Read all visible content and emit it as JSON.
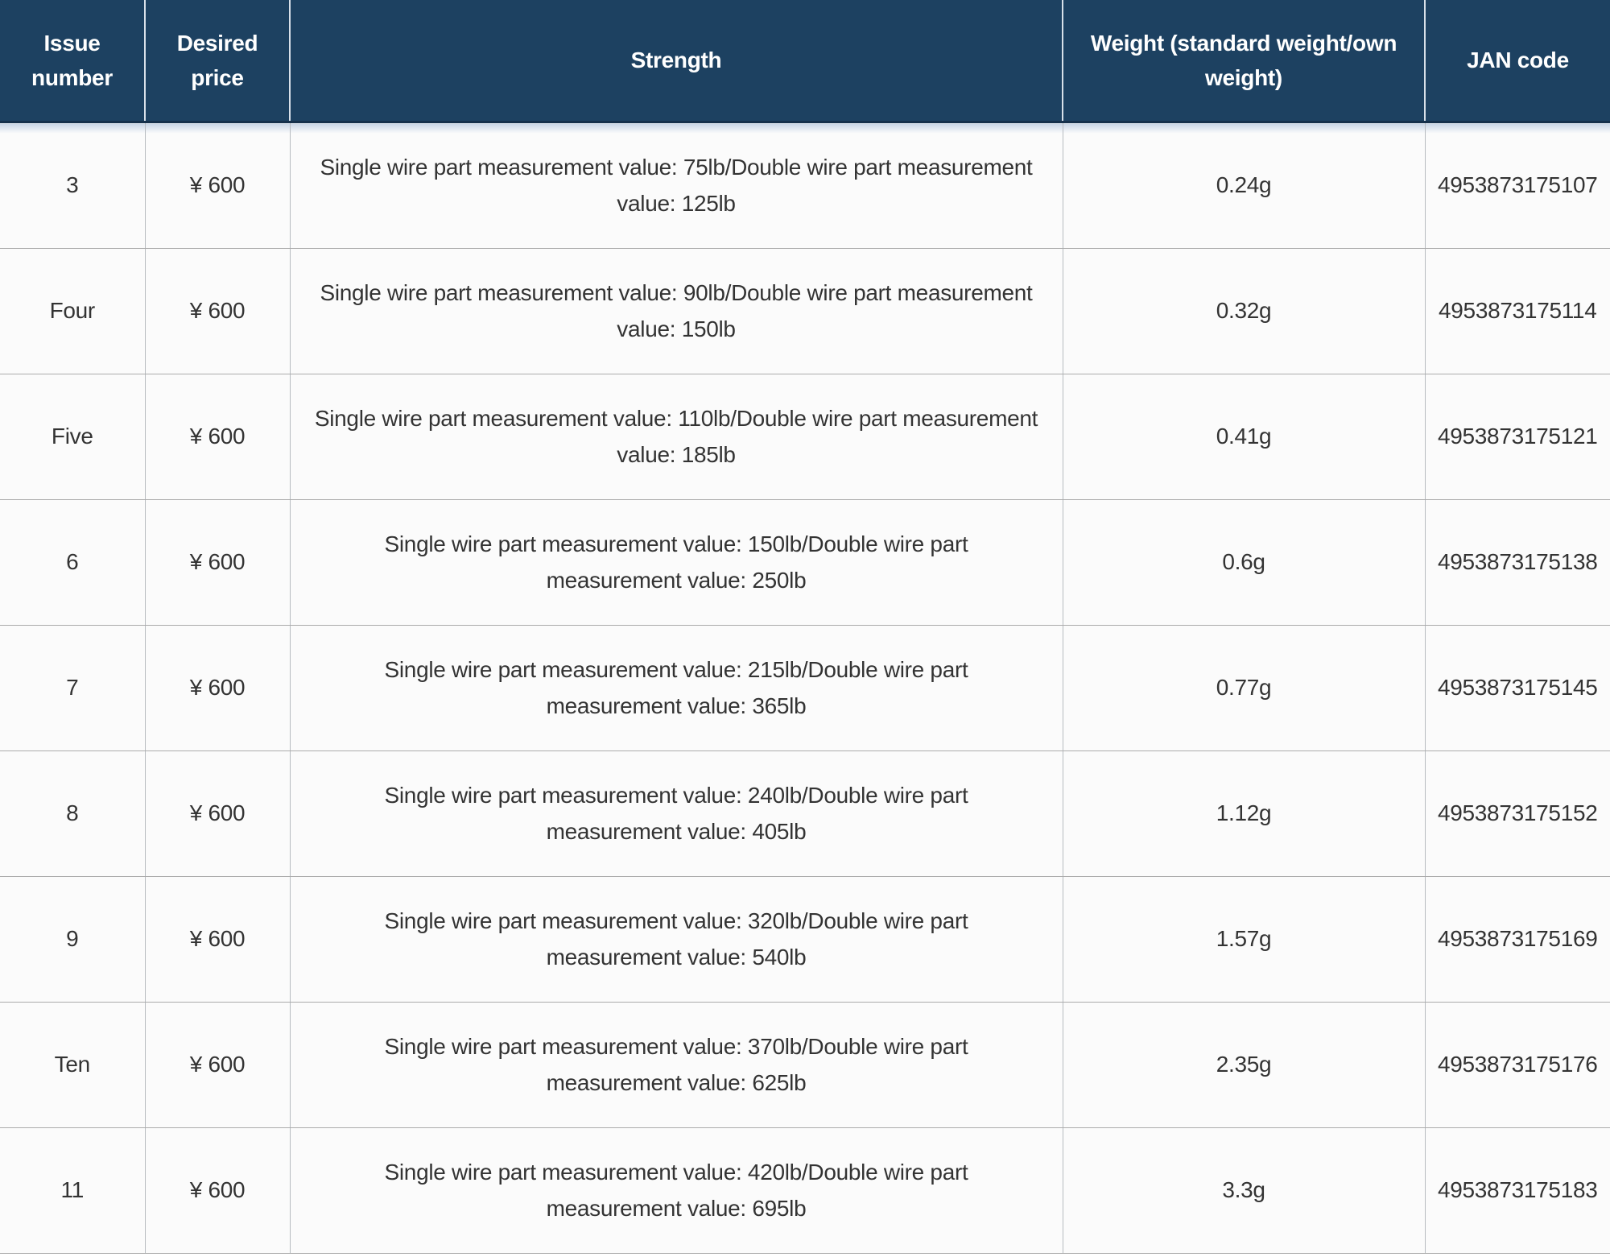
{
  "table": {
    "columns": [
      {
        "label": "Issue number"
      },
      {
        "label": "Desired price"
      },
      {
        "label": "Strength"
      },
      {
        "label": "Weight (standard weight/own weight)"
      },
      {
        "label": "JAN code"
      }
    ],
    "rows": [
      {
        "issue": "3",
        "price": "¥ 600",
        "strength": "Single wire part measurement value: 75lb/Double wire part measurement value: 125lb",
        "weight": "0.24g",
        "jan": "4953873175107"
      },
      {
        "issue": "Four",
        "price": "¥ 600",
        "strength": "Single wire part measurement value: 90lb/Double wire part measurement value: 150lb",
        "weight": "0.32g",
        "jan": "4953873175114"
      },
      {
        "issue": "Five",
        "price": "¥ 600",
        "strength": "Single wire part measurement value: 110lb/Double wire part measurement value: 185lb",
        "weight": "0.41g",
        "jan": "4953873175121"
      },
      {
        "issue": "6",
        "price": "¥ 600",
        "strength": "Single wire part measurement value: 150lb/Double wire part measurement value: 250lb",
        "weight": "0.6g",
        "jan": "4953873175138"
      },
      {
        "issue": "7",
        "price": "¥ 600",
        "strength": "Single wire part measurement value: 215lb/Double wire part measurement value: 365lb",
        "weight": "0.77g",
        "jan": "4953873175145"
      },
      {
        "issue": "8",
        "price": "¥ 600",
        "strength": "Single wire part measurement value: 240lb/Double wire part measurement value: 405lb",
        "weight": "1.12g",
        "jan": "4953873175152"
      },
      {
        "issue": "9",
        "price": "¥ 600",
        "strength": "Single wire part measurement value: 320lb/Double wire part measurement value: 540lb",
        "weight": "1.57g",
        "jan": "4953873175169"
      },
      {
        "issue": "Ten",
        "price": "¥ 600",
        "strength": "Single wire part measurement value: 370lb/Double wire part measurement value: 625lb",
        "weight": "2.35g",
        "jan": "4953873175176"
      },
      {
        "issue": "11",
        "price": "¥ 600",
        "strength": "Single wire part measurement value: 420lb/Double wire part measurement value: 695lb",
        "weight": "3.3g",
        "jan": "4953873175183"
      }
    ],
    "colors": {
      "header_bg": "#1d4161",
      "header_text": "#ffffff",
      "row_bg": "#fbfbfb",
      "body_text": "#333333",
      "bottom_bar": "#b7c2d2"
    }
  }
}
